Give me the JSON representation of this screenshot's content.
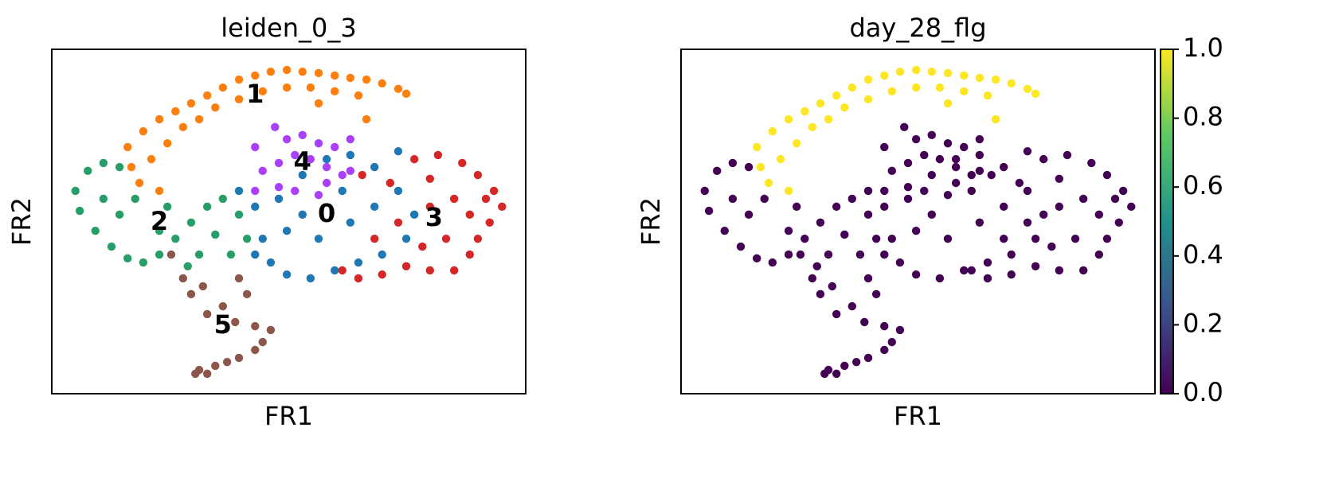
{
  "chart_data": [
    {
      "type": "scatter",
      "title": "leiden_0_3",
      "xlabel": "FR1",
      "ylabel": "FR2",
      "xlim": [
        0,
        100
      ],
      "ylim": [
        0,
        100
      ],
      "series": [
        {
          "name": "0",
          "color": "#1f77b4",
          "x": [
            39.5,
            42.9,
            44.5,
            46.2,
            49.6,
            54.6,
            59.7,
            64.7,
            69.7,
            74.8,
            76.5,
            73.1,
            68.1,
            63.0,
            58.0,
            52.9,
            47.9,
            49.6,
            56.3,
            63.0,
            68.1,
            61.3,
            52.9,
            42.9,
            73.1
          ],
          "values": [
            58.9,
            54.3,
            45.0,
            38.1,
            34.6,
            33.5,
            35.8,
            38.1,
            40.4,
            45.0,
            52.0,
            58.9,
            65.8,
            69.3,
            68.1,
            63.5,
            56.6,
            47.3,
            45.0,
            49.7,
            54.3,
            58.9,
            52.0,
            40.4,
            70.4
          ]
        },
        {
          "name": "1",
          "color": "#ff7f0e",
          "x": [
            16.0,
            19.3,
            22.7,
            26.1,
            29.4,
            32.8,
            36.1,
            39.5,
            42.9,
            46.2,
            49.6,
            52.9,
            56.3,
            59.7,
            63.0,
            66.4,
            69.7,
            73.1,
            74.8,
            21.0,
            24.4,
            27.7,
            31.1,
            34.5,
            39.5,
            44.5,
            49.6,
            54.6,
            59.7,
            64.7,
            18.5,
            22.7,
            16.8,
            66.4,
            56.3
          ],
          "values": [
            71.6,
            76.2,
            79.7,
            82.0,
            84.3,
            86.6,
            88.9,
            91.2,
            92.4,
            93.5,
            94.0,
            93.5,
            93.1,
            92.4,
            91.7,
            91.2,
            90.1,
            88.5,
            87.1,
            68.1,
            72.7,
            77.4,
            79.7,
            83.1,
            85.5,
            87.8,
            88.9,
            88.9,
            87.8,
            86.6,
            61.2,
            58.9,
            65.8,
            79.7,
            84.3
          ]
        },
        {
          "name": "2",
          "color": "#279e68",
          "x": [
            5.0,
            7.6,
            10.9,
            14.3,
            5.9,
            9.2,
            12.6,
            16.0,
            19.3,
            22.7,
            26.1,
            29.4,
            32.8,
            36.1,
            39.5,
            41.2,
            37.8,
            31.1,
            28.7,
            22.7,
            14.3,
            10.9,
            17.6,
            24.4,
            34.5
          ],
          "values": [
            58.9,
            64.7,
            67.0,
            65.8,
            53.1,
            47.3,
            42.7,
            39.3,
            38.1,
            40.4,
            45.0,
            49.7,
            54.3,
            56.6,
            52.0,
            45.0,
            40.4,
            40.4,
            37.0,
            47.3,
            52.0,
            56.6,
            56.6,
            54.3,
            46.2
          ]
        },
        {
          "name": "3",
          "color": "#d62728",
          "x": [
            76.5,
            81.5,
            86.6,
            89.9,
            93.3,
            95.0,
            92.4,
            89.9,
            88.2,
            84.9,
            79.8,
            74.8,
            69.7,
            64.7,
            61.3,
            68.1,
            73.1,
            79.8,
            84.9,
            88.2,
            83.2,
            78.2,
            79.8,
            71.4,
            65.5,
            91.6
          ],
          "values": [
            68.1,
            69.3,
            67.0,
            63.5,
            58.9,
            54.3,
            49.7,
            45.0,
            40.4,
            35.8,
            35.8,
            37.0,
            34.6,
            33.5,
            35.8,
            45.0,
            49.7,
            54.3,
            56.6,
            52.0,
            45.0,
            42.7,
            62.4,
            61.2,
            63.5,
            56.6
          ]
        },
        {
          "name": "4",
          "color": "#aa40fc",
          "x": [
            42.9,
            47.1,
            49.6,
            52.9,
            56.3,
            59.7,
            63.0,
            44.5,
            47.9,
            51.3,
            54.6,
            58.0,
            61.3,
            42.9,
            47.9,
            51.3,
            56.3,
            63.0,
            58.0
          ],
          "values": [
            71.6,
            77.4,
            73.9,
            75.1,
            72.7,
            71.6,
            73.9,
            64.7,
            67.0,
            69.3,
            68.1,
            65.8,
            63.5,
            58.9,
            60.0,
            58.9,
            57.7,
            64.7,
            61.2
          ]
        },
        {
          "name": "5",
          "color": "#8c564b",
          "x": [
            25.2,
            27.7,
            29.4,
            31.9,
            32.8,
            36.1,
            39.5,
            41.2,
            38.7,
            42.9,
            44.5,
            46.2,
            42.9,
            39.5,
            37.0,
            34.5,
            31.1,
            30.3,
            32.8
          ],
          "values": [
            40.4,
            33.5,
            28.9,
            31.2,
            23.1,
            25.4,
            33.5,
            28.9,
            20.8,
            19.6,
            15.0,
            18.5,
            12.7,
            10.4,
            9.2,
            8.1,
            6.9,
            5.8,
            5.8
          ]
        }
      ]
    },
    {
      "type": "scatter-colorbar",
      "title": "day_28_flg",
      "xlabel": "FR1",
      "ylabel": "FR2",
      "xlim": [
        0,
        100
      ],
      "ylim": [
        0,
        100
      ],
      "clim": [
        0,
        1
      ],
      "cmap_colors": [
        "#440154",
        "#3b528b",
        "#21918c",
        "#5ec962",
        "#fde725"
      ],
      "cticks": [
        {
          "value": 0,
          "label": "0.0"
        },
        {
          "value": 0.2,
          "label": "0.2"
        },
        {
          "value": 0.4,
          "label": "0.4"
        },
        {
          "value": 0.6,
          "label": "0.6"
        },
        {
          "value": 0.8,
          "label": "0.8"
        },
        {
          "value": 1,
          "label": "1.0"
        }
      ],
      "series": [
        {
          "x": [
            39.5,
            42.9,
            44.5,
            46.2,
            49.6,
            54.6,
            59.7,
            64.7,
            69.7,
            74.8,
            76.5,
            73.1,
            68.1,
            63.0,
            58.0,
            52.9,
            47.9,
            49.6,
            56.3,
            63.0,
            68.1,
            61.3,
            52.9,
            42.9,
            73.1
          ],
          "y": [
            58.9,
            54.3,
            45.0,
            38.1,
            34.6,
            33.5,
            35.8,
            38.1,
            40.4,
            45.0,
            52.0,
            58.9,
            65.8,
            69.3,
            68.1,
            63.5,
            56.6,
            47.3,
            45.0,
            49.7,
            54.3,
            58.9,
            52.0,
            40.4,
            70.4
          ],
          "values": [
            0,
            0,
            0,
            0,
            0,
            0,
            0,
            0,
            0,
            0,
            0,
            0,
            0,
            0,
            0,
            0,
            0,
            0,
            0,
            0,
            0,
            0,
            0,
            0,
            0
          ]
        },
        {
          "x": [
            5.0,
            7.6,
            10.9,
            14.3,
            5.9,
            9.2,
            12.6,
            16.0,
            19.3,
            22.7,
            26.1,
            29.4,
            32.8,
            36.1,
            39.5,
            41.2,
            37.8,
            31.1,
            28.7,
            22.7,
            14.3,
            10.9,
            17.6,
            24.4,
            34.5
          ],
          "y": [
            58.9,
            64.7,
            67.0,
            65.8,
            53.1,
            47.3,
            42.7,
            39.3,
            38.1,
            40.4,
            45.0,
            49.7,
            54.3,
            56.6,
            52.0,
            45.0,
            40.4,
            40.4,
            37.0,
            47.3,
            52.0,
            56.6,
            56.6,
            54.3,
            46.2
          ],
          "values": [
            0,
            0,
            0,
            0,
            0,
            0,
            0,
            0,
            0,
            0,
            0,
            0,
            0,
            0,
            0,
            0,
            0,
            0,
            0,
            0,
            0,
            0,
            0,
            0,
            0
          ]
        },
        {
          "x": [
            76.5,
            81.5,
            86.6,
            89.9,
            93.3,
            95.0,
            92.4,
            89.9,
            88.2,
            84.9,
            79.8,
            74.8,
            69.7,
            64.7,
            61.3,
            68.1,
            73.1,
            79.8,
            84.9,
            88.2,
            83.2,
            78.2,
            79.8,
            71.4,
            65.5,
            91.6
          ],
          "y": [
            68.1,
            69.3,
            67.0,
            63.5,
            58.9,
            54.3,
            49.7,
            45.0,
            40.4,
            35.8,
            35.8,
            37.0,
            34.6,
            33.5,
            35.8,
            45.0,
            49.7,
            54.3,
            56.6,
            52.0,
            45.0,
            42.7,
            62.4,
            61.2,
            63.5,
            56.6
          ],
          "values": [
            0,
            0,
            0,
            0,
            0,
            0,
            0,
            0,
            0,
            0,
            0,
            0,
            0,
            0,
            0,
            0,
            0,
            0,
            0,
            0,
            0,
            0,
            0,
            0,
            0,
            0
          ]
        },
        {
          "x": [
            42.9,
            47.1,
            49.6,
            52.9,
            56.3,
            59.7,
            63.0,
            44.5,
            47.9,
            51.3,
            54.6,
            58.0,
            61.3,
            42.9,
            47.9,
            51.3,
            56.3,
            63.0,
            58.0
          ],
          "y": [
            71.6,
            77.4,
            73.9,
            75.1,
            72.7,
            71.6,
            73.9,
            64.7,
            67.0,
            69.3,
            68.1,
            65.8,
            63.5,
            58.9,
            60.0,
            58.9,
            57.7,
            64.7,
            61.2
          ],
          "values": [
            0,
            0,
            0,
            0,
            0,
            0,
            0,
            0,
            0,
            0,
            0,
            0,
            0,
            0,
            0,
            0,
            0,
            0,
            0
          ]
        },
        {
          "x": [
            25.2,
            27.7,
            29.4,
            31.9,
            32.8,
            36.1,
            39.5,
            41.2,
            38.7,
            42.9,
            44.5,
            46.2,
            42.9,
            39.5,
            37.0,
            34.5,
            31.1,
            30.3,
            32.8
          ],
          "y": [
            40.4,
            33.5,
            28.9,
            31.2,
            23.1,
            25.4,
            33.5,
            28.9,
            20.8,
            19.6,
            15.0,
            18.5,
            12.7,
            10.4,
            9.2,
            8.1,
            6.9,
            5.8,
            5.8
          ],
          "values": [
            0,
            0,
            0,
            0,
            0,
            0,
            0,
            0,
            0,
            0,
            0,
            0,
            0,
            0,
            0,
            0,
            0,
            0,
            0
          ]
        },
        {
          "x": [
            16.0,
            19.3,
            22.7,
            26.1,
            29.4,
            32.8,
            36.1,
            39.5,
            42.9,
            46.2,
            49.6,
            52.9,
            56.3,
            59.7,
            63.0,
            66.4,
            69.7,
            73.1,
            74.8,
            21.0,
            24.4,
            27.7,
            31.1,
            34.5,
            39.5,
            44.5,
            49.6,
            54.6,
            59.7,
            64.7,
            18.5,
            22.7,
            16.8,
            66.4,
            56.3
          ],
          "y": [
            71.6,
            76.2,
            79.7,
            82.0,
            84.3,
            86.6,
            88.9,
            91.2,
            92.4,
            93.5,
            94.0,
            93.5,
            93.1,
            92.4,
            91.7,
            91.2,
            90.1,
            88.5,
            87.1,
            68.1,
            72.7,
            77.4,
            79.7,
            83.1,
            85.5,
            87.8,
            88.9,
            88.9,
            87.8,
            86.6,
            61.2,
            58.9,
            65.8,
            79.7,
            84.3
          ],
          "values": [
            1,
            1,
            1,
            1,
            1,
            1,
            1,
            1,
            1,
            1,
            1,
            1,
            1,
            1,
            1,
            1,
            1,
            1,
            1,
            1,
            1,
            1,
            1,
            1,
            1,
            1,
            1,
            1,
            1,
            1,
            1,
            1,
            1,
            1,
            1
          ]
        }
      ]
    }
  ]
}
